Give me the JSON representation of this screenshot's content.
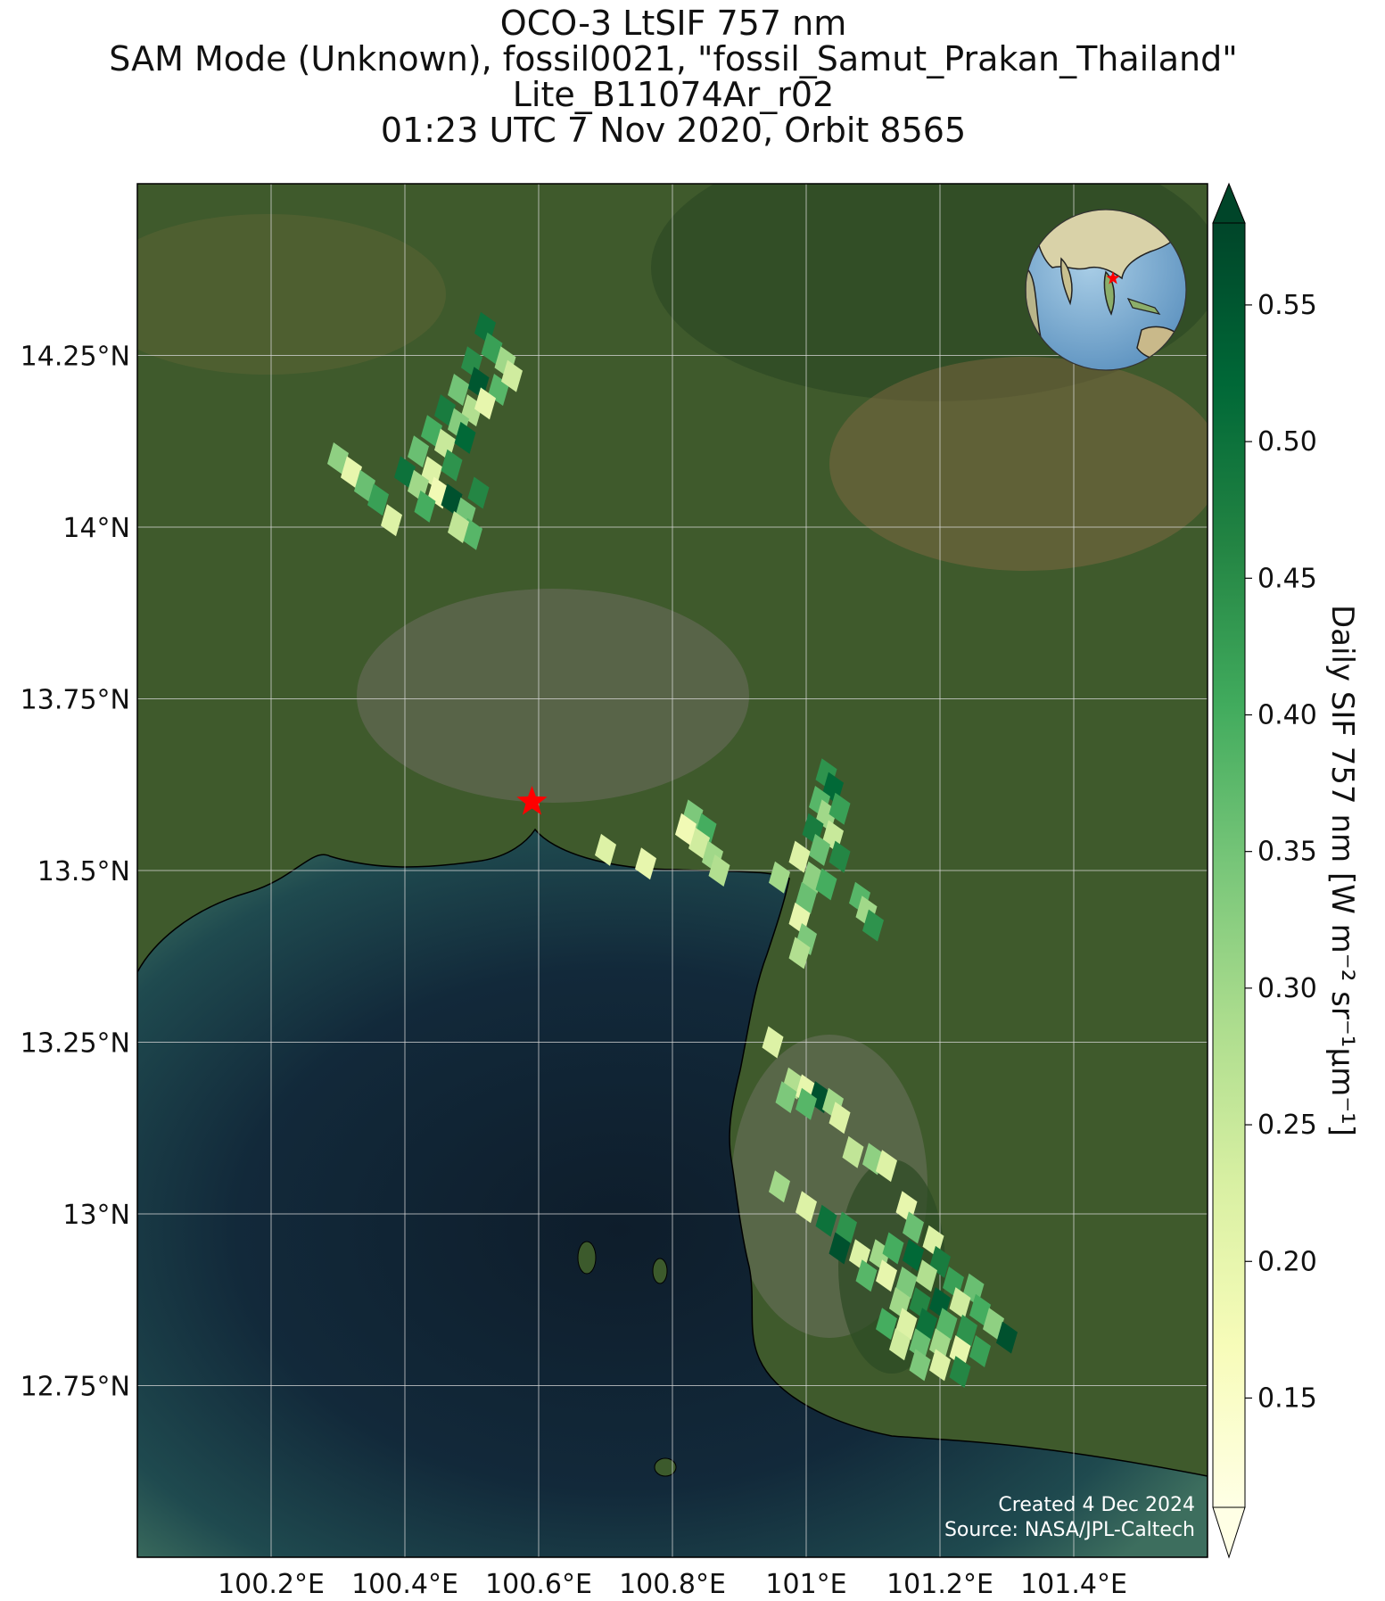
{
  "title": {
    "line1": "OCO-3 LtSIF 757 nm",
    "line2": "SAM Mode (Unknown), fossil0021, \"fossil_Samut_Prakan_Thailand\"",
    "line3": "Lite_B11074Ar_r02",
    "line4": "01:23 UTC 7 Nov 2020, Orbit 8565"
  },
  "map": {
    "lon_range": [
      100.0,
      101.6
    ],
    "lat_range": [
      12.5,
      14.5
    ],
    "lon_ticks": [
      "100.2°E",
      "100.4°E",
      "100.6°E",
      "100.8°E",
      "101°E",
      "101.2°E",
      "101.4°E"
    ],
    "lat_ticks": [
      "14.25°N",
      "14°N",
      "13.75°N",
      "13.5°N",
      "13.25°N",
      "13°N",
      "12.75°N"
    ],
    "target_site": {
      "lon": 100.59,
      "lat": 13.6,
      "marker": "red-star"
    },
    "colors": {
      "land": "#3f5a2c",
      "water": "#0f2332",
      "grid": "#d8d8d8",
      "star": "#ff0000"
    }
  },
  "inset_globe": {
    "marker": "red-star"
  },
  "colorbar": {
    "label": "Daily SIF 757 nm [W m⁻² sr⁻¹μm⁻¹]",
    "ticks": [
      "0.55",
      "0.50",
      "0.45",
      "0.40",
      "0.35",
      "0.30",
      "0.25",
      "0.20",
      "0.15"
    ],
    "range": [
      0.11,
      0.58
    ],
    "colormap": [
      "#ffffe5",
      "#f7fcb9",
      "#d9f0a3",
      "#addd8e",
      "#78c679",
      "#41ab5d",
      "#238443",
      "#006837",
      "#004529"
    ],
    "extend": "both"
  },
  "credits": {
    "created": "Created 4 Dec 2024",
    "source": "Source: NASA/JPL-Caltech"
  },
  "chart_data": {
    "type": "scatter",
    "description": "OCO-3 SIF soundings over Samut Prakan region",
    "xlabel": "",
    "ylabel": "",
    "points": [
      {
        "lon": 100.52,
        "lat": 14.29,
        "v": 0.5
      },
      {
        "lon": 100.53,
        "lat": 14.26,
        "v": 0.42
      },
      {
        "lon": 100.55,
        "lat": 14.24,
        "v": 0.3
      },
      {
        "lon": 100.5,
        "lat": 14.24,
        "v": 0.45
      },
      {
        "lon": 100.51,
        "lat": 14.21,
        "v": 0.55
      },
      {
        "lon": 100.54,
        "lat": 14.2,
        "v": 0.38
      },
      {
        "lon": 100.56,
        "lat": 14.22,
        "v": 0.24
      },
      {
        "lon": 100.48,
        "lat": 14.2,
        "v": 0.35
      },
      {
        "lon": 100.5,
        "lat": 14.17,
        "v": 0.28
      },
      {
        "lon": 100.52,
        "lat": 14.18,
        "v": 0.2
      },
      {
        "lon": 100.46,
        "lat": 14.17,
        "v": 0.48
      },
      {
        "lon": 100.48,
        "lat": 14.15,
        "v": 0.33
      },
      {
        "lon": 100.44,
        "lat": 14.14,
        "v": 0.4
      },
      {
        "lon": 100.46,
        "lat": 14.12,
        "v": 0.25
      },
      {
        "lon": 100.49,
        "lat": 14.13,
        "v": 0.52
      },
      {
        "lon": 100.42,
        "lat": 14.11,
        "v": 0.36
      },
      {
        "lon": 100.44,
        "lat": 14.08,
        "v": 0.22
      },
      {
        "lon": 100.47,
        "lat": 14.09,
        "v": 0.44
      },
      {
        "lon": 100.4,
        "lat": 14.08,
        "v": 0.5
      },
      {
        "lon": 100.42,
        "lat": 14.06,
        "v": 0.3
      },
      {
        "lon": 100.45,
        "lat": 14.05,
        "v": 0.18
      },
      {
        "lon": 100.47,
        "lat": 14.04,
        "v": 0.56
      },
      {
        "lon": 100.43,
        "lat": 14.03,
        "v": 0.4
      },
      {
        "lon": 100.49,
        "lat": 14.02,
        "v": 0.35
      },
      {
        "lon": 100.51,
        "lat": 14.05,
        "v": 0.46
      },
      {
        "lon": 100.5,
        "lat": 13.99,
        "v": 0.38
      },
      {
        "lon": 100.48,
        "lat": 14.0,
        "v": 0.26
      },
      {
        "lon": 100.3,
        "lat": 14.1,
        "v": 0.32
      },
      {
        "lon": 100.32,
        "lat": 14.08,
        "v": 0.2
      },
      {
        "lon": 100.34,
        "lat": 14.06,
        "v": 0.36
      },
      {
        "lon": 100.36,
        "lat": 14.04,
        "v": 0.42
      },
      {
        "lon": 100.38,
        "lat": 14.01,
        "v": 0.22
      },
      {
        "lon": 100.7,
        "lat": 13.53,
        "v": 0.22
      },
      {
        "lon": 100.76,
        "lat": 13.51,
        "v": 0.2
      },
      {
        "lon": 100.83,
        "lat": 13.58,
        "v": 0.34
      },
      {
        "lon": 100.85,
        "lat": 13.56,
        "v": 0.4
      },
      {
        "lon": 100.84,
        "lat": 13.54,
        "v": 0.24
      },
      {
        "lon": 100.86,
        "lat": 13.52,
        "v": 0.3
      },
      {
        "lon": 100.87,
        "lat": 13.5,
        "v": 0.28
      },
      {
        "lon": 100.82,
        "lat": 13.56,
        "v": 0.18
      },
      {
        "lon": 101.03,
        "lat": 13.64,
        "v": 0.44
      },
      {
        "lon": 101.04,
        "lat": 13.62,
        "v": 0.52
      },
      {
        "lon": 101.02,
        "lat": 13.6,
        "v": 0.38
      },
      {
        "lon": 101.03,
        "lat": 13.58,
        "v": 0.3
      },
      {
        "lon": 101.05,
        "lat": 13.59,
        "v": 0.42
      },
      {
        "lon": 101.01,
        "lat": 13.56,
        "v": 0.48
      },
      {
        "lon": 101.04,
        "lat": 13.55,
        "v": 0.25
      },
      {
        "lon": 101.02,
        "lat": 13.53,
        "v": 0.36
      },
      {
        "lon": 101.05,
        "lat": 13.52,
        "v": 0.46
      },
      {
        "lon": 100.99,
        "lat": 13.52,
        "v": 0.22
      },
      {
        "lon": 101.01,
        "lat": 13.49,
        "v": 0.32
      },
      {
        "lon": 101.03,
        "lat": 13.48,
        "v": 0.4
      },
      {
        "lon": 100.96,
        "lat": 13.49,
        "v": 0.3
      },
      {
        "lon": 101.0,
        "lat": 13.46,
        "v": 0.36
      },
      {
        "lon": 100.99,
        "lat": 13.43,
        "v": 0.2
      },
      {
        "lon": 101.0,
        "lat": 13.4,
        "v": 0.34
      },
      {
        "lon": 100.99,
        "lat": 13.38,
        "v": 0.28
      },
      {
        "lon": 101.08,
        "lat": 13.46,
        "v": 0.38
      },
      {
        "lon": 101.09,
        "lat": 13.44,
        "v": 0.3
      },
      {
        "lon": 101.1,
        "lat": 13.42,
        "v": 0.44
      },
      {
        "lon": 100.95,
        "lat": 13.25,
        "v": 0.22
      },
      {
        "lon": 100.98,
        "lat": 13.19,
        "v": 0.28
      },
      {
        "lon": 101.0,
        "lat": 13.18,
        "v": 0.2
      },
      {
        "lon": 101.02,
        "lat": 13.17,
        "v": 0.56
      },
      {
        "lon": 100.97,
        "lat": 13.17,
        "v": 0.34
      },
      {
        "lon": 101.0,
        "lat": 13.16,
        "v": 0.38
      },
      {
        "lon": 101.04,
        "lat": 13.16,
        "v": 0.3
      },
      {
        "lon": 101.05,
        "lat": 13.14,
        "v": 0.22
      },
      {
        "lon": 101.07,
        "lat": 13.09,
        "v": 0.26
      },
      {
        "lon": 101.1,
        "lat": 13.08,
        "v": 0.32
      },
      {
        "lon": 101.12,
        "lat": 13.07,
        "v": 0.22
      },
      {
        "lon": 100.96,
        "lat": 13.04,
        "v": 0.3
      },
      {
        "lon": 101.0,
        "lat": 13.01,
        "v": 0.22
      },
      {
        "lon": 101.03,
        "lat": 12.99,
        "v": 0.5
      },
      {
        "lon": 101.06,
        "lat": 12.98,
        "v": 0.44
      },
      {
        "lon": 101.15,
        "lat": 13.01,
        "v": 0.2
      },
      {
        "lon": 101.16,
        "lat": 12.98,
        "v": 0.36
      },
      {
        "lon": 101.19,
        "lat": 12.96,
        "v": 0.22
      },
      {
        "lon": 101.05,
        "lat": 12.95,
        "v": 0.56
      },
      {
        "lon": 101.08,
        "lat": 12.94,
        "v": 0.22
      },
      {
        "lon": 101.11,
        "lat": 12.94,
        "v": 0.3
      },
      {
        "lon": 101.13,
        "lat": 12.95,
        "v": 0.4
      },
      {
        "lon": 101.16,
        "lat": 12.94,
        "v": 0.52
      },
      {
        "lon": 101.2,
        "lat": 12.93,
        "v": 0.48
      },
      {
        "lon": 101.09,
        "lat": 12.91,
        "v": 0.38
      },
      {
        "lon": 101.12,
        "lat": 12.91,
        "v": 0.2
      },
      {
        "lon": 101.15,
        "lat": 12.9,
        "v": 0.34
      },
      {
        "lon": 101.18,
        "lat": 12.91,
        "v": 0.28
      },
      {
        "lon": 101.22,
        "lat": 12.9,
        "v": 0.42
      },
      {
        "lon": 101.25,
        "lat": 12.89,
        "v": 0.36
      },
      {
        "lon": 101.14,
        "lat": 12.87,
        "v": 0.3
      },
      {
        "lon": 101.17,
        "lat": 12.87,
        "v": 0.46
      },
      {
        "lon": 101.2,
        "lat": 12.87,
        "v": 0.54
      },
      {
        "lon": 101.23,
        "lat": 12.87,
        "v": 0.24
      },
      {
        "lon": 101.26,
        "lat": 12.86,
        "v": 0.4
      },
      {
        "lon": 101.28,
        "lat": 12.84,
        "v": 0.32
      },
      {
        "lon": 101.12,
        "lat": 12.84,
        "v": 0.4
      },
      {
        "lon": 101.15,
        "lat": 12.84,
        "v": 0.22
      },
      {
        "lon": 101.18,
        "lat": 12.84,
        "v": 0.5
      },
      {
        "lon": 101.21,
        "lat": 12.84,
        "v": 0.38
      },
      {
        "lon": 101.24,
        "lat": 12.83,
        "v": 0.44
      },
      {
        "lon": 101.3,
        "lat": 12.82,
        "v": 0.56
      },
      {
        "lon": 101.14,
        "lat": 12.81,
        "v": 0.24
      },
      {
        "lon": 101.17,
        "lat": 12.81,
        "v": 0.36
      },
      {
        "lon": 101.2,
        "lat": 12.81,
        "v": 0.3
      },
      {
        "lon": 101.23,
        "lat": 12.8,
        "v": 0.2
      },
      {
        "lon": 101.26,
        "lat": 12.8,
        "v": 0.42
      },
      {
        "lon": 101.17,
        "lat": 12.78,
        "v": 0.34
      },
      {
        "lon": 101.2,
        "lat": 12.78,
        "v": 0.22
      },
      {
        "lon": 101.23,
        "lat": 12.77,
        "v": 0.46
      }
    ]
  }
}
